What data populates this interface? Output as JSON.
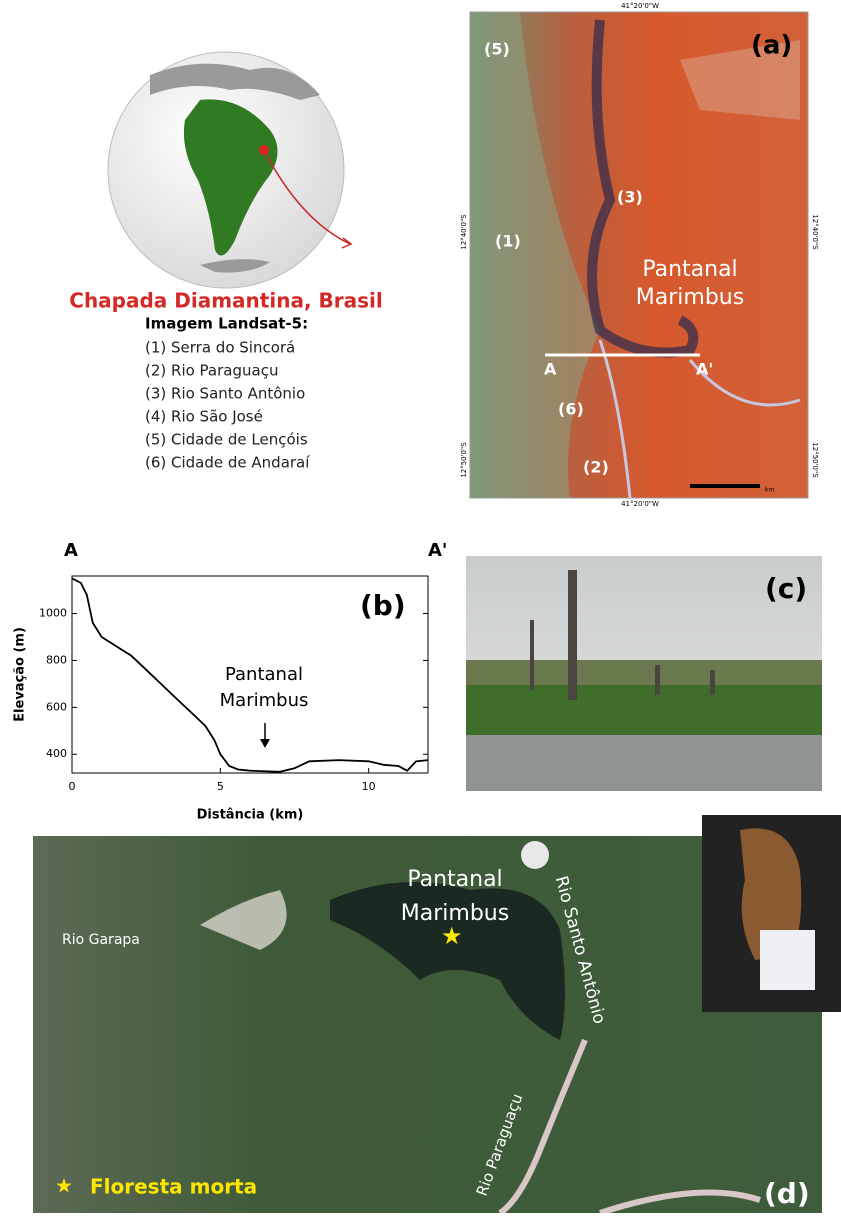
{
  "globe": {
    "caption": "Chapada Diamantina, Brasil"
  },
  "legend": {
    "title": "Imagem Landsat-5:",
    "items": [
      "(1) Serra do Sincorá",
      "(2) Rio Paraguaçu",
      "(3) Rio Santo Antônio",
      "(4) Rio São José",
      "(5) Cidade de Lençóis",
      "(6) Cidade de Andaraí"
    ]
  },
  "panel_a": {
    "label": "(a)",
    "top_coordinate": "41°20'0\"W",
    "bottom_coordinate": "41°20'0\"W",
    "left_coordinates": [
      "12°40'0\"S",
      "12°50'0\"S"
    ],
    "right_coordinates": [
      "12°40'0\"S",
      "12°50'0\"S"
    ],
    "marks": [
      "(5)",
      "(3)",
      "(1)",
      "(6)",
      "(2)"
    ],
    "site": [
      "Pantanal",
      "Marimbus"
    ],
    "section_start": "A",
    "section_end": "A'",
    "scale": "km"
  },
  "chart_data": {
    "type": "line",
    "label": "(b)",
    "section_start": "A",
    "section_end": "A'",
    "x_label": "Distância (km)",
    "y_label": "Elevação (m)",
    "annotation": [
      "Pantanal",
      "Marimbus"
    ],
    "color": "#000000",
    "x": [
      0,
      0.3,
      0.5,
      0.7,
      1,
      1.5,
      2,
      2.5,
      3,
      3.5,
      4,
      4.5,
      4.8,
      5,
      5.3,
      5.6,
      6,
      7,
      7.5,
      8,
      9,
      10,
      10.5,
      11,
      11.3,
      11.6,
      12
    ],
    "values": [
      1150,
      1130,
      1080,
      960,
      900,
      860,
      820,
      760,
      700,
      640,
      580,
      520,
      460,
      400,
      350,
      335,
      330,
      325,
      340,
      370,
      375,
      370,
      355,
      350,
      330,
      370,
      375
    ],
    "xlim": [
      0,
      12
    ],
    "ylim": [
      320,
      1160
    ],
    "xticks": [
      0,
      5,
      10
    ],
    "yticks": [
      400,
      600,
      800,
      1000
    ]
  },
  "panel_c": {
    "label": "(c)"
  },
  "panel_d": {
    "label": "(d)",
    "site": [
      "Pantanal",
      "Marimbus"
    ],
    "rivers": [
      "Rio Garapa",
      "Rio Santo Antônio",
      "Rio Paraguaçu"
    ],
    "legend": "Floresta morta"
  }
}
